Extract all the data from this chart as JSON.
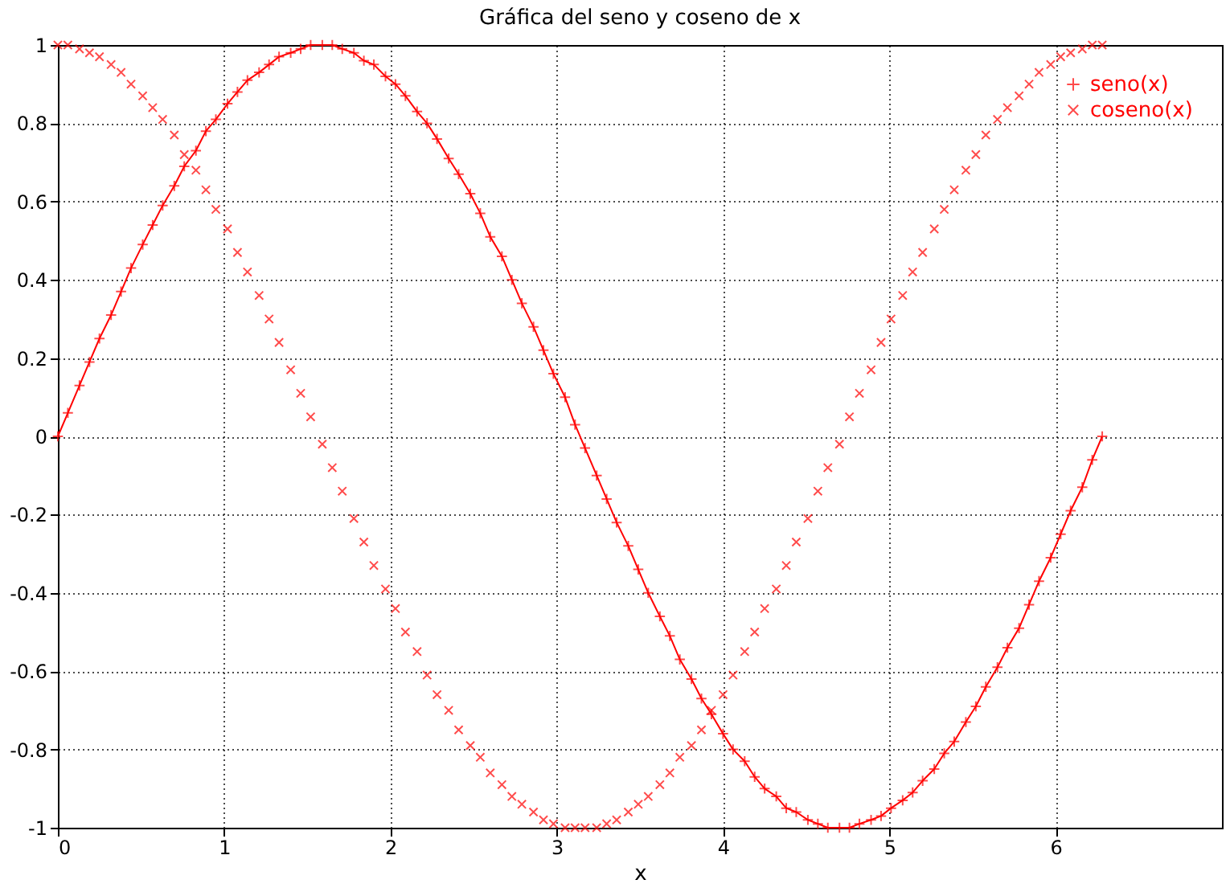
{
  "chart_data": {
    "type": "line",
    "title": "Gráfica del seno y coseno de x",
    "xlabel": "x",
    "x": [
      0,
      0.06,
      0.13,
      0.19,
      0.25,
      0.32,
      0.38,
      0.44,
      0.51,
      0.57,
      0.63,
      0.7,
      0.76,
      0.83,
      0.89,
      0.95,
      1.02,
      1.08,
      1.14,
      1.21,
      1.27,
      1.33,
      1.4,
      1.46,
      1.52,
      1.59,
      1.65,
      1.71,
      1.78,
      1.84,
      1.9,
      1.97,
      2.03,
      2.09,
      2.16,
      2.22,
      2.28,
      2.35,
      2.41,
      2.48,
      2.54,
      2.6,
      2.67,
      2.73,
      2.79,
      2.86,
      2.92,
      2.98,
      3.05,
      3.11,
      3.17,
      3.24,
      3.3,
      3.36,
      3.43,
      3.49,
      3.55,
      3.62,
      3.68,
      3.74,
      3.81,
      3.87,
      3.93,
      4.0,
      4.06,
      4.13,
      4.19,
      4.25,
      4.32,
      4.38,
      4.44,
      4.51,
      4.57,
      4.63,
      4.7,
      4.76,
      4.82,
      4.89,
      4.95,
      5.01,
      5.08,
      5.14,
      5.2,
      5.27,
      5.33,
      5.39,
      5.46,
      5.52,
      5.58,
      5.65,
      5.71,
      5.78,
      5.84,
      5.9,
      5.97,
      6.03,
      6.09,
      6.16,
      6.22,
      6.28
    ],
    "series": [
      {
        "name": "seno(x)",
        "marker": "cross",
        "color": "#ff0000",
        "values": [
          0,
          0.06,
          0.13,
          0.19,
          0.25,
          0.31,
          0.37,
          0.43,
          0.49,
          0.54,
          0.59,
          0.64,
          0.69,
          0.73,
          0.78,
          0.81,
          0.85,
          0.88,
          0.91,
          0.93,
          0.95,
          0.97,
          0.98,
          0.99,
          1.0,
          1.0,
          1.0,
          0.99,
          0.98,
          0.96,
          0.95,
          0.92,
          0.9,
          0.87,
          0.83,
          0.8,
          0.76,
          0.71,
          0.67,
          0.62,
          0.57,
          0.51,
          0.46,
          0.4,
          0.34,
          0.28,
          0.22,
          0.16,
          0.1,
          0.03,
          -0.03,
          -0.1,
          -0.16,
          -0.22,
          -0.28,
          -0.34,
          -0.4,
          -0.46,
          -0.51,
          -0.57,
          -0.62,
          -0.67,
          -0.71,
          -0.76,
          -0.8,
          -0.83,
          -0.87,
          -0.9,
          -0.92,
          -0.95,
          -0.96,
          -0.98,
          -0.99,
          -1.0,
          -1.0,
          -1.0,
          -0.99,
          -0.98,
          -0.97,
          -0.95,
          -0.93,
          -0.91,
          -0.88,
          -0.85,
          -0.81,
          -0.78,
          -0.73,
          -0.69,
          -0.64,
          -0.59,
          -0.54,
          -0.49,
          -0.43,
          -0.37,
          -0.31,
          -0.25,
          -0.19,
          -0.13,
          -0.06,
          0
        ]
      },
      {
        "name": "coseno(x)",
        "type": "scatter",
        "marker": "x",
        "color": "#ff0000",
        "values": [
          1,
          1.0,
          0.99,
          0.98,
          0.97,
          0.95,
          0.93,
          0.9,
          0.87,
          0.84,
          0.81,
          0.77,
          0.72,
          0.68,
          0.63,
          0.58,
          0.53,
          0.47,
          0.42,
          0.36,
          0.3,
          0.24,
          0.17,
          0.11,
          0.05,
          -0.02,
          -0.08,
          -0.14,
          -0.21,
          -0.27,
          -0.33,
          -0.39,
          -0.44,
          -0.5,
          -0.55,
          -0.61,
          -0.66,
          -0.7,
          -0.75,
          -0.79,
          -0.82,
          -0.86,
          -0.89,
          -0.92,
          -0.94,
          -0.96,
          -0.98,
          -0.99,
          -1.0,
          -1.0,
          -1.0,
          -1.0,
          -0.99,
          -0.98,
          -0.96,
          -0.94,
          -0.92,
          -0.89,
          -0.86,
          -0.82,
          -0.79,
          -0.75,
          -0.7,
          -0.66,
          -0.61,
          -0.55,
          -0.5,
          -0.44,
          -0.39,
          -0.33,
          -0.27,
          -0.21,
          -0.14,
          -0.08,
          -0.02,
          0.05,
          0.11,
          0.17,
          0.24,
          0.3,
          0.36,
          0.42,
          0.47,
          0.53,
          0.58,
          0.63,
          0.68,
          0.72,
          0.77,
          0.81,
          0.84,
          0.87,
          0.9,
          0.93,
          0.95,
          0.97,
          0.98,
          0.99,
          1.0,
          1
        ]
      }
    ],
    "xlim": [
      0,
      7
    ],
    "xticks": [
      0,
      1,
      2,
      3,
      4,
      5,
      6
    ],
    "ylim": [
      -1,
      1
    ],
    "yticks": [
      -1,
      -0.8,
      -0.6,
      -0.4,
      -0.2,
      0,
      0.2,
      0.4,
      0.6,
      0.8,
      1
    ],
    "grid": true,
    "legend": "top right"
  }
}
